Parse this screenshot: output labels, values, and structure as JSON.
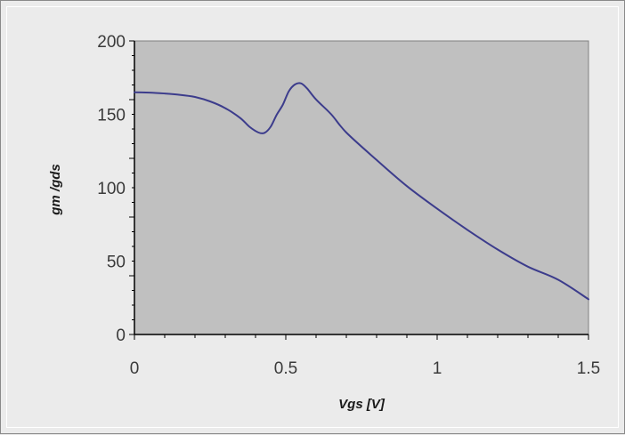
{
  "chart_data": {
    "type": "line",
    "title": "",
    "xlabel": "V_gs [V]",
    "ylabel": "g_m / g_ds",
    "xlabel_display": "Vgs [V]",
    "ylabel_display": "gm /gds",
    "xlim": [
      0,
      1.5
    ],
    "ylim": [
      0,
      200
    ],
    "x_ticks": [
      0,
      0.5,
      1,
      1.5
    ],
    "x_tick_labels": [
      "0",
      "0.5",
      "1",
      "1.5"
    ],
    "y_ticks": [
      0,
      50,
      100,
      150,
      200
    ],
    "y_tick_labels": [
      "0",
      "50",
      "100",
      "150",
      "200"
    ],
    "grid": false,
    "legend": "none",
    "colors": {
      "plot_area": "#c0c0c0",
      "series": "#3c3c8c",
      "axis": "#000000"
    },
    "series": [
      {
        "x": [
          0,
          0.05,
          0.1,
          0.15,
          0.2,
          0.25,
          0.3,
          0.35,
          0.38,
          0.41,
          0.43,
          0.45,
          0.47,
          0.49,
          0.51,
          0.53,
          0.55,
          0.57,
          0.6,
          0.65,
          0.7,
          0.8,
          0.9,
          1.0,
          1.1,
          1.2,
          1.3,
          1.4,
          1.5
        ],
        "y": [
          165,
          164.8,
          164.2,
          163.3,
          161.8,
          158.8,
          154.2,
          147.4,
          141.5,
          137.6,
          137.4,
          141.5,
          149.7,
          156.4,
          165.7,
          170.3,
          171.1,
          167.7,
          160.1,
          150.0,
          137.6,
          118.9,
          101.1,
          85.7,
          71.3,
          57.9,
          46.2,
          37.3,
          24.0
        ]
      }
    ]
  }
}
